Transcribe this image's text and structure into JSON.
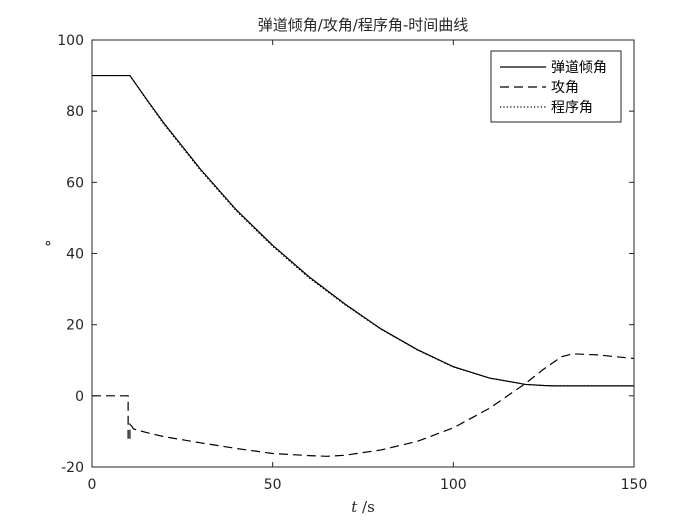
{
  "chart_data": {
    "type": "line",
    "title": "弹道倾角/攻角/程序角-时间曲线",
    "xlabel_var": "t",
    "xlabel_unit": " /s",
    "ylabel": "°",
    "xlim": [
      0,
      150
    ],
    "ylim": [
      -20,
      100
    ],
    "xticks": [
      0,
      50,
      100,
      150
    ],
    "yticks": [
      -20,
      0,
      20,
      40,
      60,
      80,
      100
    ],
    "grid": false,
    "legend_position": "top-right",
    "series": [
      {
        "name": "弹道倾角",
        "style": "solid",
        "color": "#000000",
        "x": [
          0,
          10,
          10.5,
          15,
          20,
          30,
          40,
          50,
          60,
          70,
          80,
          90,
          100,
          110,
          120,
          125,
          128,
          130,
          135,
          140,
          150
        ],
        "y": [
          90,
          90,
          90,
          83.5,
          76.5,
          63.7,
          52.2,
          42.3,
          33.5,
          25.8,
          18.8,
          13,
          8.2,
          5,
          3.2,
          2.9,
          2.8,
          2.8,
          2.8,
          2.8,
          2.8
        ]
      },
      {
        "name": "攻角",
        "style": "dashed",
        "color": "#000000",
        "x": [
          0,
          10,
          10,
          10.5,
          10.5,
          11,
          11.5,
          15,
          20,
          30,
          40,
          50,
          60,
          65,
          70,
          80,
          90,
          100,
          110,
          120,
          125,
          130,
          133,
          140,
          150
        ],
        "y": [
          0,
          0,
          -12.5,
          -12.5,
          -8,
          -8.5,
          -9.3,
          -10.3,
          -11.5,
          -13.2,
          -14.8,
          -16.2,
          -16.8,
          -17,
          -16.7,
          -15.2,
          -12.8,
          -9,
          -3.5,
          3.5,
          7.5,
          11,
          11.8,
          11.5,
          10.5
        ]
      },
      {
        "name": "程序角",
        "style": "dotted",
        "color": "#000000",
        "x": [
          0,
          10,
          10.5,
          15,
          20,
          30,
          40,
          50,
          60,
          70,
          80,
          90,
          100,
          110,
          120,
          125,
          128,
          130,
          135,
          140,
          150
        ],
        "y": [
          90,
          90,
          90,
          83.3,
          76.2,
          63.4,
          51.9,
          42,
          33.2,
          25.6,
          18.7,
          12.9,
          8.1,
          5,
          3.2,
          2.9,
          2.8,
          2.8,
          2.8,
          2.8,
          2.8
        ]
      }
    ]
  }
}
